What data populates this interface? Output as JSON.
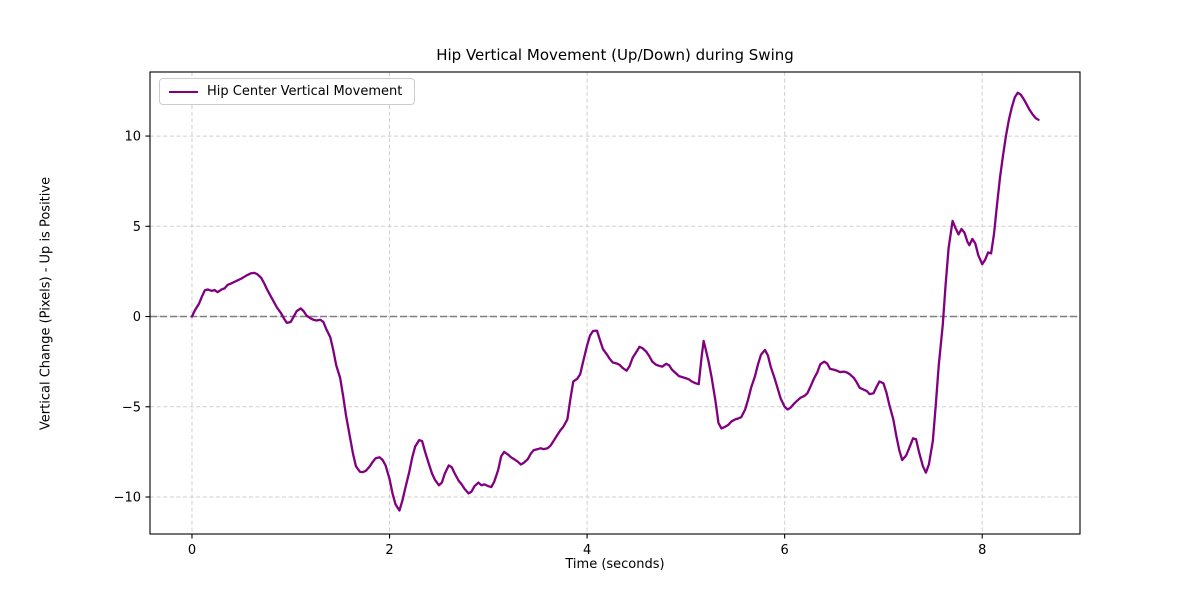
{
  "colors": {
    "line": "#800080",
    "zero_line": "#7f7f7f",
    "grid": "#cfcfcf",
    "spine": "#000000",
    "legend_border": "#cccccc",
    "background": "#ffffff"
  },
  "legend": {
    "label": "Hip Center Vertical Movement"
  },
  "chart_data": {
    "type": "line",
    "title": "Hip Vertical Movement (Up/Down) during Swing",
    "xlabel": "Time (seconds)",
    "ylabel": "Vertical Change (Pixels) - Up is Positive",
    "legend_position": "upper-left",
    "grid": true,
    "grid_style": "dashed",
    "xlim": [
      -0.425,
      8.99
    ],
    "ylim": [
      -12.05,
      13.55
    ],
    "xticks": {
      "values": [
        0,
        2,
        4,
        6,
        8
      ],
      "labels": [
        "0",
        "2",
        "4",
        "6",
        "8"
      ]
    },
    "yticks": {
      "values": [
        -10,
        -5,
        0,
        5,
        10
      ],
      "labels": [
        "−10",
        "−5",
        "0",
        "5",
        "10"
      ]
    },
    "zero_line": {
      "y": 0,
      "style": "dashed",
      "color": "#7f7f7f"
    },
    "series": [
      {
        "name": "Hip Center Vertical Movement",
        "color": "#800080",
        "line_width": 2.3,
        "points": [
          [
            0.0,
            0.0
          ],
          [
            0.03,
            0.35
          ],
          [
            0.07,
            0.7
          ],
          [
            0.1,
            1.1
          ],
          [
            0.13,
            1.45
          ],
          [
            0.16,
            1.5
          ],
          [
            0.2,
            1.42
          ],
          [
            0.23,
            1.47
          ],
          [
            0.26,
            1.35
          ],
          [
            0.3,
            1.5
          ],
          [
            0.33,
            1.56
          ],
          [
            0.36,
            1.75
          ],
          [
            0.4,
            1.84
          ],
          [
            0.43,
            1.92
          ],
          [
            0.46,
            2.0
          ],
          [
            0.5,
            2.1
          ],
          [
            0.53,
            2.2
          ],
          [
            0.56,
            2.3
          ],
          [
            0.6,
            2.4
          ],
          [
            0.63,
            2.42
          ],
          [
            0.66,
            2.35
          ],
          [
            0.7,
            2.15
          ],
          [
            0.73,
            1.85
          ],
          [
            0.76,
            1.5
          ],
          [
            0.8,
            1.1
          ],
          [
            0.83,
            0.8
          ],
          [
            0.86,
            0.5
          ],
          [
            0.9,
            0.2
          ],
          [
            0.93,
            -0.1
          ],
          [
            0.96,
            -0.35
          ],
          [
            1.0,
            -0.3
          ],
          [
            1.03,
            0.0
          ],
          [
            1.06,
            0.3
          ],
          [
            1.1,
            0.45
          ],
          [
            1.13,
            0.3
          ],
          [
            1.16,
            0.05
          ],
          [
            1.2,
            -0.1
          ],
          [
            1.23,
            -0.18
          ],
          [
            1.26,
            -0.22
          ],
          [
            1.3,
            -0.18
          ],
          [
            1.33,
            -0.3
          ],
          [
            1.36,
            -0.7
          ],
          [
            1.4,
            -1.15
          ],
          [
            1.43,
            -1.85
          ],
          [
            1.46,
            -2.7
          ],
          [
            1.5,
            -3.4
          ],
          [
            1.53,
            -4.4
          ],
          [
            1.56,
            -5.5
          ],
          [
            1.6,
            -6.7
          ],
          [
            1.63,
            -7.6
          ],
          [
            1.66,
            -8.3
          ],
          [
            1.7,
            -8.6
          ],
          [
            1.73,
            -8.62
          ],
          [
            1.76,
            -8.55
          ],
          [
            1.8,
            -8.3
          ],
          [
            1.83,
            -8.05
          ],
          [
            1.86,
            -7.85
          ],
          [
            1.9,
            -7.8
          ],
          [
            1.93,
            -7.95
          ],
          [
            1.96,
            -8.25
          ],
          [
            2.0,
            -9.0
          ],
          [
            2.03,
            -9.8
          ],
          [
            2.06,
            -10.4
          ],
          [
            2.1,
            -10.75
          ],
          [
            2.13,
            -10.2
          ],
          [
            2.16,
            -9.5
          ],
          [
            2.2,
            -8.6
          ],
          [
            2.23,
            -7.8
          ],
          [
            2.26,
            -7.2
          ],
          [
            2.3,
            -6.85
          ],
          [
            2.33,
            -6.9
          ],
          [
            2.36,
            -7.5
          ],
          [
            2.4,
            -8.2
          ],
          [
            2.43,
            -8.7
          ],
          [
            2.46,
            -9.05
          ],
          [
            2.5,
            -9.35
          ],
          [
            2.53,
            -9.2
          ],
          [
            2.56,
            -8.7
          ],
          [
            2.6,
            -8.25
          ],
          [
            2.63,
            -8.35
          ],
          [
            2.66,
            -8.7
          ],
          [
            2.7,
            -9.1
          ],
          [
            2.73,
            -9.3
          ],
          [
            2.76,
            -9.55
          ],
          [
            2.8,
            -9.8
          ],
          [
            2.83,
            -9.7
          ],
          [
            2.86,
            -9.4
          ],
          [
            2.9,
            -9.2
          ],
          [
            2.93,
            -9.35
          ],
          [
            2.96,
            -9.3
          ],
          [
            3.0,
            -9.4
          ],
          [
            3.03,
            -9.45
          ],
          [
            3.06,
            -9.15
          ],
          [
            3.1,
            -8.5
          ],
          [
            3.13,
            -7.75
          ],
          [
            3.16,
            -7.5
          ],
          [
            3.2,
            -7.65
          ],
          [
            3.23,
            -7.8
          ],
          [
            3.26,
            -7.9
          ],
          [
            3.3,
            -8.05
          ],
          [
            3.33,
            -8.2
          ],
          [
            3.36,
            -8.1
          ],
          [
            3.4,
            -7.9
          ],
          [
            3.43,
            -7.6
          ],
          [
            3.46,
            -7.4
          ],
          [
            3.5,
            -7.35
          ],
          [
            3.53,
            -7.3
          ],
          [
            3.56,
            -7.35
          ],
          [
            3.6,
            -7.3
          ],
          [
            3.63,
            -7.15
          ],
          [
            3.66,
            -6.9
          ],
          [
            3.7,
            -6.55
          ],
          [
            3.73,
            -6.3
          ],
          [
            3.76,
            -6.1
          ],
          [
            3.8,
            -5.7
          ],
          [
            3.83,
            -4.6
          ],
          [
            3.86,
            -3.6
          ],
          [
            3.9,
            -3.45
          ],
          [
            3.93,
            -3.2
          ],
          [
            3.96,
            -2.5
          ],
          [
            4.0,
            -1.6
          ],
          [
            4.03,
            -1.05
          ],
          [
            4.06,
            -0.8
          ],
          [
            4.1,
            -0.78
          ],
          [
            4.13,
            -1.3
          ],
          [
            4.16,
            -1.8
          ],
          [
            4.2,
            -2.1
          ],
          [
            4.23,
            -2.35
          ],
          [
            4.26,
            -2.55
          ],
          [
            4.3,
            -2.6
          ],
          [
            4.33,
            -2.68
          ],
          [
            4.36,
            -2.85
          ],
          [
            4.4,
            -3.0
          ],
          [
            4.43,
            -2.75
          ],
          [
            4.46,
            -2.3
          ],
          [
            4.5,
            -1.95
          ],
          [
            4.53,
            -1.68
          ],
          [
            4.56,
            -1.75
          ],
          [
            4.6,
            -1.95
          ],
          [
            4.63,
            -2.2
          ],
          [
            4.66,
            -2.5
          ],
          [
            4.7,
            -2.68
          ],
          [
            4.73,
            -2.73
          ],
          [
            4.76,
            -2.78
          ],
          [
            4.8,
            -2.62
          ],
          [
            4.83,
            -2.7
          ],
          [
            4.86,
            -2.95
          ],
          [
            4.9,
            -3.15
          ],
          [
            4.93,
            -3.3
          ],
          [
            4.96,
            -3.35
          ],
          [
            5.0,
            -3.42
          ],
          [
            5.03,
            -3.48
          ],
          [
            5.06,
            -3.6
          ],
          [
            5.1,
            -3.7
          ],
          [
            5.13,
            -3.75
          ],
          [
            5.16,
            -2.2
          ],
          [
            5.18,
            -1.35
          ],
          [
            5.2,
            -1.8
          ],
          [
            5.23,
            -2.5
          ],
          [
            5.26,
            -3.35
          ],
          [
            5.3,
            -4.7
          ],
          [
            5.33,
            -5.9
          ],
          [
            5.36,
            -6.2
          ],
          [
            5.4,
            -6.1
          ],
          [
            5.43,
            -6.0
          ],
          [
            5.46,
            -5.82
          ],
          [
            5.5,
            -5.7
          ],
          [
            5.53,
            -5.65
          ],
          [
            5.56,
            -5.58
          ],
          [
            5.6,
            -5.15
          ],
          [
            5.63,
            -4.6
          ],
          [
            5.66,
            -3.95
          ],
          [
            5.7,
            -3.3
          ],
          [
            5.73,
            -2.65
          ],
          [
            5.76,
            -2.12
          ],
          [
            5.8,
            -1.85
          ],
          [
            5.83,
            -2.15
          ],
          [
            5.86,
            -2.8
          ],
          [
            5.9,
            -3.45
          ],
          [
            5.93,
            -4.0
          ],
          [
            5.96,
            -4.55
          ],
          [
            6.0,
            -5.0
          ],
          [
            6.03,
            -5.15
          ],
          [
            6.06,
            -5.05
          ],
          [
            6.1,
            -4.8
          ],
          [
            6.13,
            -4.65
          ],
          [
            6.16,
            -4.5
          ],
          [
            6.2,
            -4.4
          ],
          [
            6.23,
            -4.25
          ],
          [
            6.26,
            -3.9
          ],
          [
            6.3,
            -3.4
          ],
          [
            6.33,
            -3.1
          ],
          [
            6.36,
            -2.65
          ],
          [
            6.4,
            -2.5
          ],
          [
            6.43,
            -2.6
          ],
          [
            6.46,
            -2.9
          ],
          [
            6.5,
            -2.95
          ],
          [
            6.53,
            -3.0
          ],
          [
            6.56,
            -3.08
          ],
          [
            6.6,
            -3.05
          ],
          [
            6.63,
            -3.1
          ],
          [
            6.66,
            -3.2
          ],
          [
            6.7,
            -3.4
          ],
          [
            6.73,
            -3.65
          ],
          [
            6.76,
            -3.95
          ],
          [
            6.8,
            -4.05
          ],
          [
            6.83,
            -4.12
          ],
          [
            6.86,
            -4.3
          ],
          [
            6.9,
            -4.25
          ],
          [
            6.93,
            -3.9
          ],
          [
            6.96,
            -3.6
          ],
          [
            7.0,
            -3.7
          ],
          [
            7.03,
            -4.2
          ],
          [
            7.06,
            -4.9
          ],
          [
            7.1,
            -5.7
          ],
          [
            7.13,
            -6.6
          ],
          [
            7.16,
            -7.4
          ],
          [
            7.19,
            -7.95
          ],
          [
            7.23,
            -7.7
          ],
          [
            7.26,
            -7.3
          ],
          [
            7.3,
            -6.75
          ],
          [
            7.33,
            -6.8
          ],
          [
            7.36,
            -7.5
          ],
          [
            7.4,
            -8.3
          ],
          [
            7.43,
            -8.65
          ],
          [
            7.46,
            -8.2
          ],
          [
            7.5,
            -6.9
          ],
          [
            7.53,
            -4.9
          ],
          [
            7.56,
            -2.7
          ],
          [
            7.6,
            -0.5
          ],
          [
            7.63,
            1.8
          ],
          [
            7.66,
            3.8
          ],
          [
            7.7,
            5.3
          ],
          [
            7.73,
            4.9
          ],
          [
            7.76,
            4.55
          ],
          [
            7.79,
            4.85
          ],
          [
            7.82,
            4.65
          ],
          [
            7.85,
            4.15
          ],
          [
            7.87,
            3.95
          ],
          [
            7.9,
            4.3
          ],
          [
            7.93,
            4.05
          ],
          [
            7.96,
            3.4
          ],
          [
            8.0,
            2.9
          ],
          [
            8.03,
            3.15
          ],
          [
            8.06,
            3.55
          ],
          [
            8.09,
            3.5
          ],
          [
            8.12,
            4.6
          ],
          [
            8.15,
            6.2
          ],
          [
            8.18,
            7.7
          ],
          [
            8.21,
            8.9
          ],
          [
            8.24,
            10.0
          ],
          [
            8.27,
            10.9
          ],
          [
            8.3,
            11.6
          ],
          [
            8.33,
            12.15
          ],
          [
            8.36,
            12.4
          ],
          [
            8.39,
            12.3
          ],
          [
            8.42,
            12.05
          ],
          [
            8.45,
            11.75
          ],
          [
            8.48,
            11.45
          ],
          [
            8.51,
            11.2
          ],
          [
            8.54,
            11.0
          ],
          [
            8.57,
            10.9
          ]
        ]
      }
    ]
  }
}
